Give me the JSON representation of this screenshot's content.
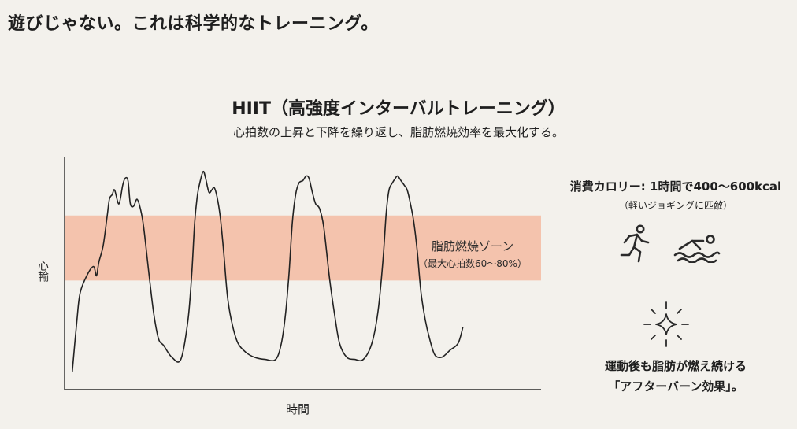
{
  "headline": "遊びじゃない。これは科学的なトレーニング。",
  "chart_data": {
    "type": "line",
    "title": "HIIT（高強度インターバルトレーニング）",
    "subtitle": "心拍数の上昇と下降を繰り返し、脂肪燃焼効率を最大化する。",
    "xlabel": "時間",
    "ylabel": "心輸",
    "ylim": [
      0,
      100
    ],
    "xlim": [
      0,
      100
    ],
    "zone": {
      "label": "脂肪燃焼ゾーン",
      "sublabel": "（最大心拍数60〜80%）",
      "range": [
        47,
        75
      ],
      "color": "#f4c3ad"
    },
    "series": [
      {
        "x": [
          1.6,
          2.6,
          3.3,
          4.9,
          6.1,
          6.7,
          7.2,
          8.1,
          8.9,
          9.4,
          10.0,
          10.5,
          11.4,
          12.2,
          12.7,
          13.3,
          13.8,
          14.5,
          15.2,
          15.9,
          16.6,
          17.7,
          18.7,
          19.7,
          20.8,
          22.5,
          24.4,
          25.9,
          26.7,
          27.3,
          27.9,
          28.5,
          29.1,
          29.6,
          30.3,
          30.9,
          31.4,
          32.0,
          32.7,
          33.4,
          34.2,
          35.2,
          36.4,
          38.1,
          39.8,
          42.1,
          44.3,
          45.5,
          46.4,
          47.1,
          47.8,
          48.5,
          49.2,
          50.0,
          50.7,
          51.3,
          52.0,
          52.7,
          53.5,
          54.4,
          55.6,
          56.7,
          57.7,
          59.2,
          60.9,
          62.7,
          64.5,
          65.8,
          66.8,
          67.5,
          68.1,
          68.8,
          69.4,
          69.9,
          70.6,
          71.3,
          71.9,
          72.6,
          73.3,
          74.0,
          74.8,
          75.7,
          76.6,
          77.7,
          79.2,
          80.9,
          82.6,
          83.6
        ],
        "y": [
          7.5,
          30,
          42,
          50,
          53,
          49,
          55,
          62,
          74,
          82,
          84,
          86,
          80,
          88,
          91,
          90,
          80,
          79,
          82,
          78,
          70,
          50,
          33,
          22,
          19,
          14,
          13,
          30,
          50,
          72,
          84,
          90,
          94,
          91,
          85,
          86,
          87,
          83,
          74,
          59,
          40,
          28,
          20,
          16,
          14,
          13,
          13,
          20,
          33,
          50,
          72,
          84,
          89,
          90,
          92,
          91,
          85,
          80,
          78,
          70,
          48,
          32,
          20,
          14,
          13,
          13,
          20,
          34,
          55,
          76,
          86,
          89,
          91,
          92,
          90,
          88,
          86,
          80,
          72,
          60,
          42,
          30,
          22,
          15,
          14,
          17,
          20,
          27
        ]
      }
    ],
    "grid": false
  },
  "side": {
    "calories": "消費カロリー: 1時間で400〜600kcal",
    "calories_note": "（軽いジョギングに匹敵）",
    "afterburn_line1": "運動後も脂肪が燃え続ける",
    "afterburn_line2": "「アフターバーン効果」。",
    "icons": [
      "running-icon",
      "swimming-icon",
      "sparkle-icon"
    ]
  }
}
